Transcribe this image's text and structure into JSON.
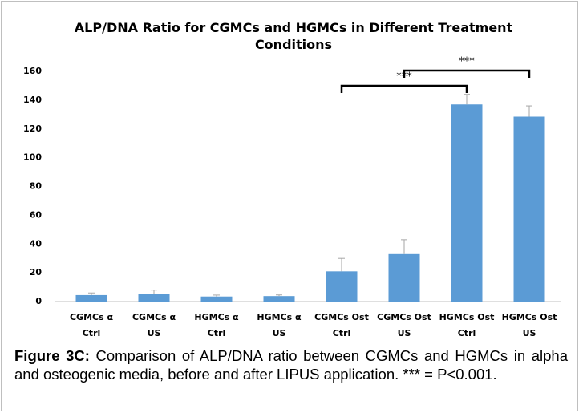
{
  "chart_data": {
    "type": "bar",
    "title": "ALP/DNA Ratio for CGMCs and HGMCs in Different Treatment Conditions",
    "categories": [
      [
        "CGMCs α",
        "Ctrl"
      ],
      [
        "CGMCs α",
        "US"
      ],
      [
        "HGMCs α",
        "Ctrl"
      ],
      [
        "HGMCs α",
        "US"
      ],
      [
        "CGMCs Ost",
        "Ctrl"
      ],
      [
        "CGMCs Ost",
        "US"
      ],
      [
        "HGMCs Ost",
        "Ctrl"
      ],
      [
        "HGMCs Ost",
        "US"
      ]
    ],
    "values": [
      4.5,
      5.5,
      3.5,
      3.8,
      21,
      33,
      137,
      128.5
    ],
    "errors": [
      1.5,
      2.5,
      1,
      0.8,
      9,
      10,
      7,
      7.5
    ],
    "color": "#5b9bd5",
    "ylim": [
      0,
      160
    ],
    "yticks": [
      0,
      20,
      40,
      60,
      80,
      100,
      120,
      140,
      160
    ],
    "grid": false,
    "annotations": [
      {
        "text": "***",
        "between": [
          4,
          6
        ]
      },
      {
        "text": "***",
        "between": [
          5,
          7
        ]
      }
    ]
  },
  "caption": {
    "label": "Figure 3C:",
    "text": "Comparison of ALP/DNA ratio between CGMCs and HGMCs in alpha and osteogenic media, before and after LIPUS application. *** = P<0.001."
  }
}
